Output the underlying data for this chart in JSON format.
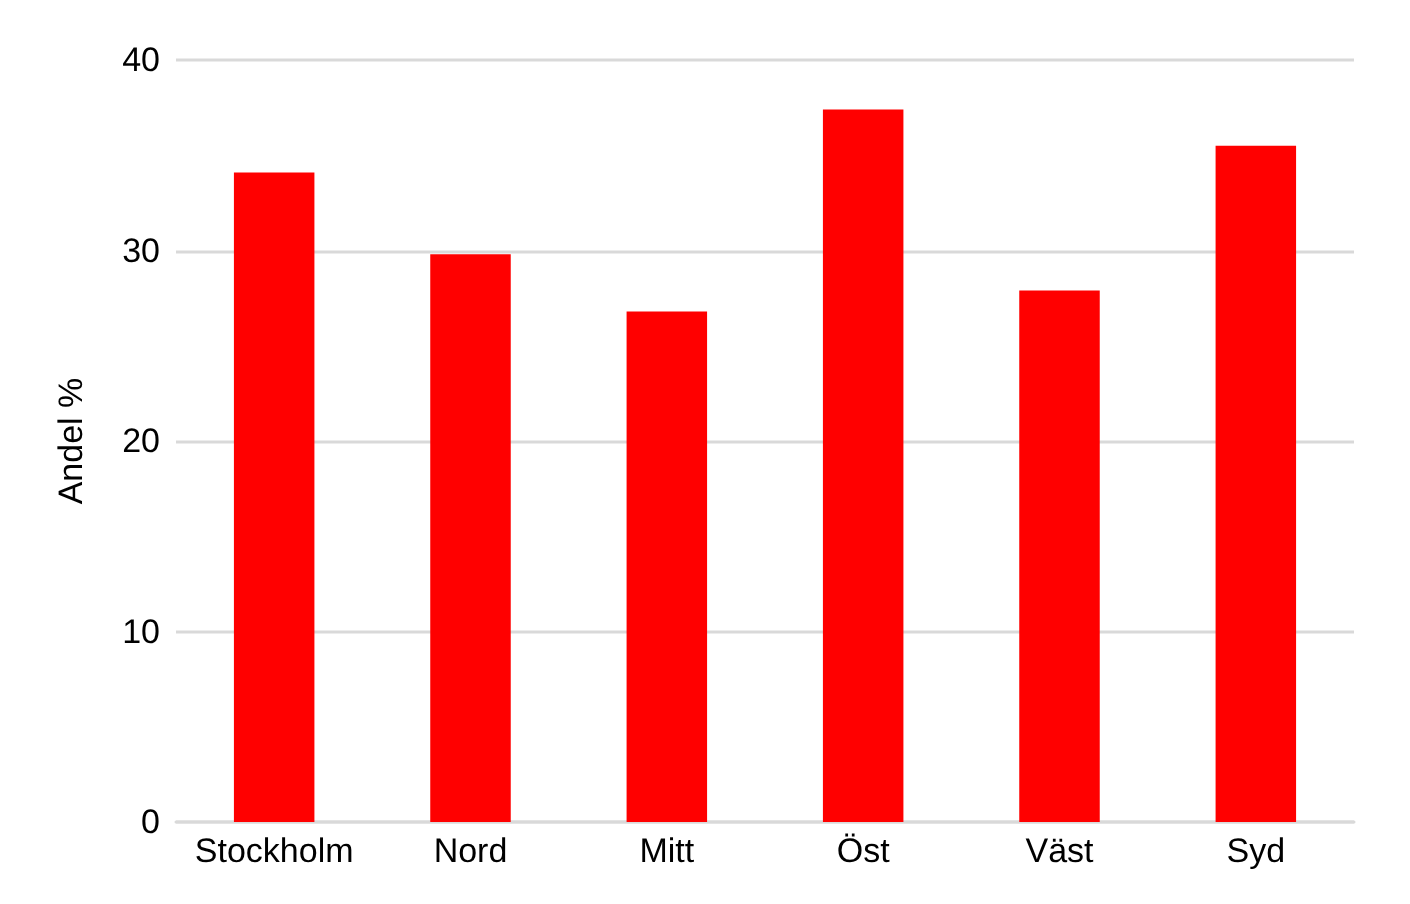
{
  "chart_data": {
    "type": "bar",
    "ylabel": "Andel %",
    "categories": [
      "Stockholm",
      "Nord",
      "Mitt",
      "Öst",
      "Väst",
      "Syd"
    ],
    "values": [
      34.1,
      29.8,
      26.8,
      37.4,
      27.9,
      35.5
    ],
    "color": "#ff0000",
    "ylim": [
      0,
      40
    ],
    "yticks": [
      0,
      10,
      20,
      30,
      40
    ],
    "grid": "y"
  }
}
